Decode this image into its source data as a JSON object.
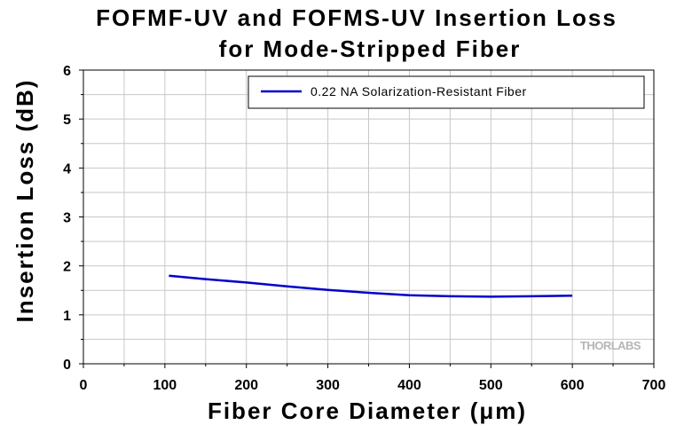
{
  "chart_data": {
    "type": "line",
    "title": "FOFMF-UV and FOFMS-UV Insertion Loss",
    "subtitle": "for Mode-Stripped Fiber",
    "xlabel": "Fiber Core Diameter (μm)",
    "ylabel": "Insertion Loss (dB)",
    "xlim": [
      0,
      700
    ],
    "ylim": [
      0,
      6
    ],
    "x_ticks": [
      "0",
      "100",
      "200",
      "300",
      "400",
      "500",
      "600",
      "700"
    ],
    "y_ticks": [
      "0",
      "1",
      "2",
      "3",
      "4",
      "5",
      "6"
    ],
    "grid": true,
    "legend_position": "top-right",
    "series": [
      {
        "name": "0.22 NA Solarization-Resistant Fiber",
        "color": "#0000cc",
        "x": [
          105,
          150,
          200,
          250,
          300,
          350,
          400,
          450,
          500,
          550,
          600
        ],
        "y": [
          1.8,
          1.73,
          1.66,
          1.58,
          1.51,
          1.45,
          1.4,
          1.38,
          1.37,
          1.38,
          1.39
        ]
      }
    ]
  },
  "watermark": "THORLABS"
}
